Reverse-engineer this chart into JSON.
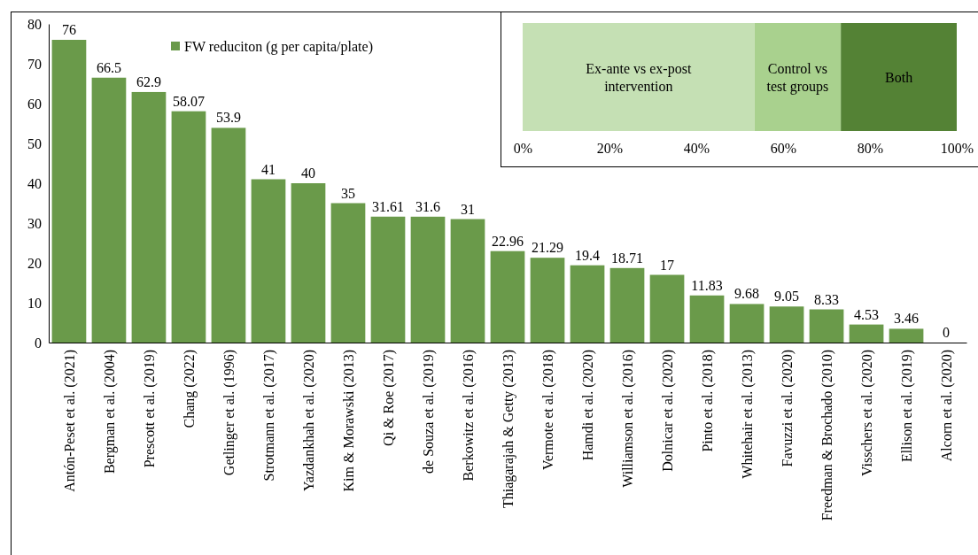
{
  "chart_data": [
    {
      "type": "bar",
      "categories": [
        "Antón-Peset et al. (2021)",
        "Bergman et al. (2004)",
        "Prescott et al. (2019)",
        "Chang (2022)",
        "Getlinger et al. (1996)",
        "Strotmann et al. (2017)",
        "Yazdankhah et al. (2020)",
        "Kim & Morawski (2013)",
        "Qi & Roe (2017)",
        "de Souza et al. (2019)",
        "Berkowitz et al. (2016)",
        "Thiagarajah & Getty (2013)",
        "Vermote et al. (2018)",
        "Hamdi et al. (2020)",
        "Williamson et al. (2016)",
        "Dolnicar et al. (2020)",
        "Pinto et al. (2018)",
        "Whitehair et al. (2013)",
        "Favuzzi et al. (2020)",
        "Freedman & Brochado (2010)",
        "Visschers et al. (2020)",
        "Ellison et al. (2019)",
        "Alcorn et al. (2020)"
      ],
      "series": [
        {
          "name": "FW reduciton (g per capita/plate)",
          "color": "#6a9a4a",
          "values": [
            76,
            66.5,
            62.9,
            58.07,
            53.9,
            41,
            40,
            35,
            31.61,
            31.6,
            31,
            22.96,
            21.29,
            19.4,
            18.71,
            17,
            11.83,
            9.68,
            9.05,
            8.33,
            4.53,
            3.46,
            0
          ]
        }
      ],
      "ylim": [
        0,
        80
      ],
      "yticks": [
        0,
        10,
        20,
        30,
        40,
        50,
        60,
        70,
        80
      ],
      "data_labels": true,
      "legend": "top left",
      "grid": false
    },
    {
      "type": "bar",
      "orientation": "horizontal",
      "stacked": true,
      "categories": [
        null
      ],
      "series": [
        {
          "name": "Ex-ante vs ex-post intervention",
          "color": "#c5e0b4",
          "values": [
            53.4
          ]
        },
        {
          "name": "Control vs test groups",
          "color": "#a9d18e",
          "values": [
            19.9
          ]
        },
        {
          "name": "Both",
          "color": "#548235",
          "values": [
            26.7
          ]
        }
      ],
      "xlim": [
        0,
        100
      ],
      "xticks": [
        {
          "value": 0,
          "label": "0%"
        },
        {
          "value": 20,
          "label": "20%"
        },
        {
          "value": 40,
          "label": "40%"
        },
        {
          "value": 60,
          "label": "60%"
        },
        {
          "value": 80,
          "label": "80%"
        },
        {
          "value": 100,
          "label": "100%"
        }
      ]
    }
  ]
}
